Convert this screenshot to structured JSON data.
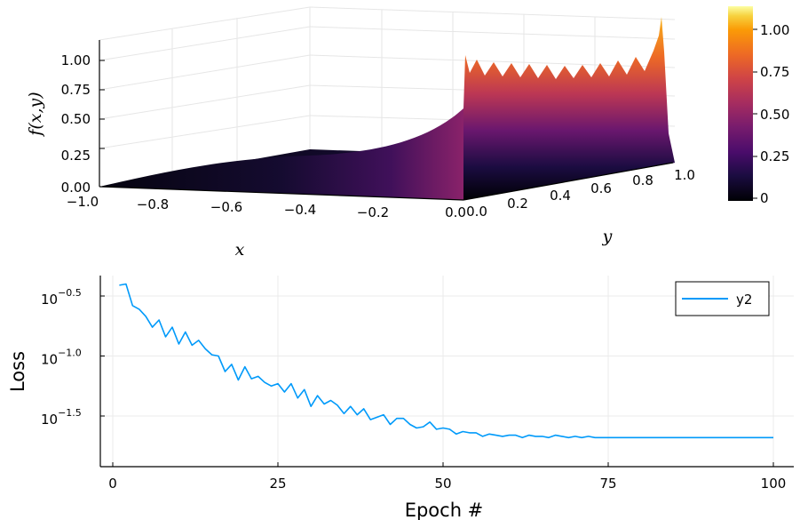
{
  "chart_data": [
    {
      "type": "surface",
      "xlabel": "x",
      "ylabel": "y",
      "zlabel": "f(x,y)",
      "xlim": [
        -1.0,
        0.0
      ],
      "ylim": [
        0.0,
        1.0
      ],
      "zlim": [
        0.0,
        1.15
      ],
      "x_tick_labels": [
        "−1.0",
        "−0.8",
        "−0.6",
        "−0.4",
        "−0.2",
        "0.0"
      ],
      "y_tick_labels": [
        "0.0",
        "0.2",
        "0.4",
        "0.6",
        "0.8",
        "1.0"
      ],
      "z_tick_labels": [
        "0.00",
        "0.25",
        "0.50",
        "0.75",
        "1.00"
      ],
      "colorbar": {
        "ticks": [
          {
            "value": 0,
            "label": "0"
          },
          {
            "value": 0.25,
            "label": "0.25"
          },
          {
            "value": 0.5,
            "label": "0.50"
          },
          {
            "value": 0.75,
            "label": "0.75"
          },
          {
            "value": 1.0,
            "label": "1.00"
          }
        ],
        "range": [
          0,
          1.15
        ],
        "colormap": "inferno"
      },
      "profile_along_x_at_y0": {
        "x": [
          -1.0,
          -0.8,
          -0.6,
          -0.4,
          -0.2,
          0.0
        ],
        "z": [
          0.0,
          0.04,
          0.07,
          0.1,
          0.2,
          0.6
        ]
      },
      "edge_at_x0": {
        "y": [
          0.0,
          0.1,
          0.2,
          0.3,
          0.4,
          0.5,
          0.6,
          0.7,
          0.8,
          0.9,
          1.0
        ],
        "z": [
          0.62,
          0.85,
          0.98,
          1.0,
          1.0,
          1.0,
          1.0,
          1.0,
          1.0,
          1.0,
          1.15
        ]
      }
    },
    {
      "type": "line",
      "xlabel": "Epoch #",
      "ylabel": "Loss",
      "xlim": [
        0,
        100
      ],
      "ylim_log10": [
        -1.95,
        -0.38
      ],
      "y_scale": "log10",
      "grid": true,
      "legend_position": "top-right",
      "x_ticks": [
        0,
        25,
        50,
        75,
        100
      ],
      "x_tick_labels": [
        "0",
        "25",
        "50",
        "75",
        "100"
      ],
      "y_ticks_log10": [
        -0.5,
        -1.0,
        -1.5
      ],
      "y_tick_exponents": [
        "−0.5",
        "−1.0",
        "−1.5"
      ],
      "y_tick_base": "10",
      "series": [
        {
          "name": "y2",
          "color": "#009AFA",
          "x": [
            1,
            2,
            3,
            4,
            5,
            6,
            7,
            8,
            9,
            10,
            11,
            12,
            13,
            14,
            15,
            16,
            17,
            18,
            19,
            20,
            21,
            22,
            23,
            24,
            25,
            26,
            27,
            28,
            29,
            30,
            31,
            32,
            33,
            34,
            35,
            36,
            37,
            38,
            39,
            40,
            41,
            42,
            43,
            44,
            45,
            46,
            47,
            48,
            49,
            50,
            51,
            52,
            53,
            54,
            55,
            56,
            57,
            58,
            59,
            60,
            61,
            62,
            63,
            64,
            65,
            66,
            67,
            68,
            69,
            70,
            71,
            72,
            73,
            74,
            75,
            76,
            77,
            78,
            79,
            80,
            81,
            82,
            83,
            84,
            85,
            86,
            87,
            88,
            89,
            90,
            91,
            92,
            93,
            94,
            95,
            96,
            97,
            98,
            99,
            100
          ],
          "log10_y": [
            -0.41,
            -0.4,
            -0.58,
            -0.61,
            -0.67,
            -0.76,
            -0.7,
            -0.84,
            -0.76,
            -0.9,
            -0.8,
            -0.91,
            -0.87,
            -0.94,
            -0.99,
            -1.0,
            -1.13,
            -1.07,
            -1.2,
            -1.09,
            -1.19,
            -1.17,
            -1.22,
            -1.25,
            -1.23,
            -1.3,
            -1.23,
            -1.35,
            -1.28,
            -1.42,
            -1.33,
            -1.4,
            -1.37,
            -1.41,
            -1.48,
            -1.42,
            -1.49,
            -1.44,
            -1.53,
            -1.51,
            -1.49,
            -1.57,
            -1.52,
            -1.52,
            -1.57,
            -1.6,
            -1.59,
            -1.55,
            -1.61,
            -1.6,
            -1.61,
            -1.65,
            -1.63,
            -1.64,
            -1.64,
            -1.67,
            -1.65,
            -1.66,
            -1.67,
            -1.66,
            -1.66,
            -1.68,
            -1.66,
            -1.67,
            -1.67,
            -1.68,
            -1.66,
            -1.67,
            -1.68,
            -1.67,
            -1.68,
            -1.67,
            -1.68,
            -1.68,
            -1.68,
            -1.68,
            -1.68,
            -1.68,
            -1.68,
            -1.68,
            -1.68,
            -1.68,
            -1.68,
            -1.68,
            -1.68,
            -1.68,
            -1.68,
            -1.68,
            -1.68,
            -1.68,
            -1.68,
            -1.68,
            -1.68,
            -1.68,
            -1.68,
            -1.68,
            -1.68,
            -1.68,
            -1.68,
            -1.68
          ]
        }
      ]
    }
  ]
}
